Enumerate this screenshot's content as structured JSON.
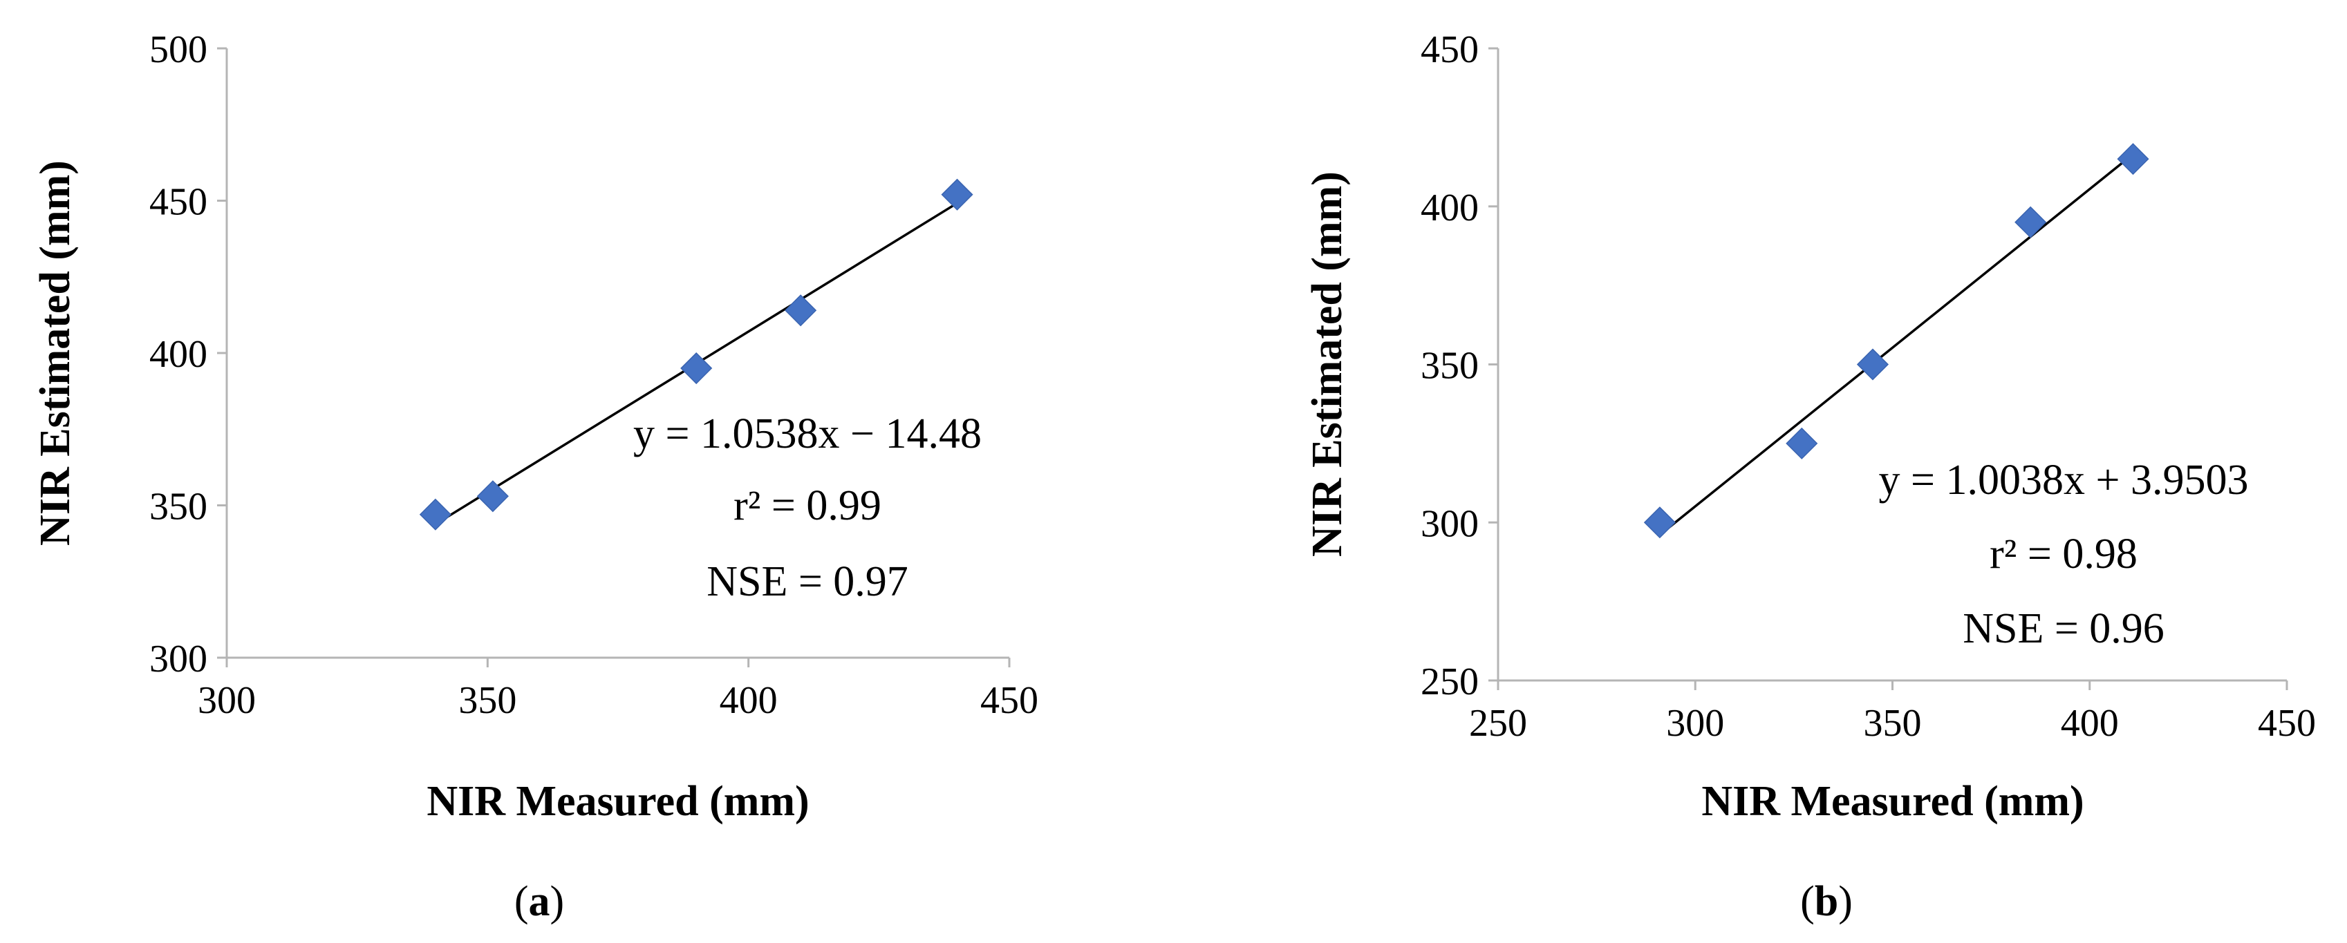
{
  "chart_data": [
    {
      "type": "scatter",
      "caption_letter": "a",
      "xlabel": "NIR Measured (mm)",
      "ylabel": "NIR Estimated (mm)",
      "xlim": [
        300,
        450
      ],
      "ylim": [
        300,
        500
      ],
      "xticks": [
        "300",
        "350",
        "400",
        "450"
      ],
      "yticks": [
        "300",
        "350",
        "400",
        "450",
        "500"
      ],
      "points": [
        {
          "x": 340,
          "y": 347
        },
        {
          "x": 351,
          "y": 353
        },
        {
          "x": 390,
          "y": 395
        },
        {
          "x": 410,
          "y": 414
        },
        {
          "x": 440,
          "y": 452
        }
      ],
      "trendline": {
        "slope": 1.0538,
        "intercept": -14.48,
        "x_range": [
          340,
          440
        ]
      },
      "equation": "y = 1.0538x − 14.48",
      "r2_label": "r² = 0.99",
      "nse_label": "NSE = 0.97",
      "marker_color": "#4472C4"
    },
    {
      "type": "scatter",
      "caption_letter": "b",
      "xlabel": "NIR Measured (mm)",
      "ylabel": "NIR Estimated (mm)",
      "xlim": [
        250,
        450
      ],
      "ylim": [
        250,
        450
      ],
      "xticks": [
        "250",
        "300",
        "350",
        "400",
        "450"
      ],
      "yticks": [
        "250",
        "300",
        "350",
        "400",
        "450"
      ],
      "points": [
        {
          "x": 291,
          "y": 300
        },
        {
          "x": 327,
          "y": 325
        },
        {
          "x": 345,
          "y": 350
        },
        {
          "x": 385,
          "y": 395
        },
        {
          "x": 411,
          "y": 415
        }
      ],
      "trendline": {
        "slope": 1.0038,
        "intercept": 3.9503,
        "x_range": [
          291,
          411
        ]
      },
      "equation": "y = 1.0038x + 3.9503",
      "r2_label": "r² = 0.98",
      "nse_label": "NSE = 0.96",
      "marker_color": "#4472C4"
    }
  ]
}
